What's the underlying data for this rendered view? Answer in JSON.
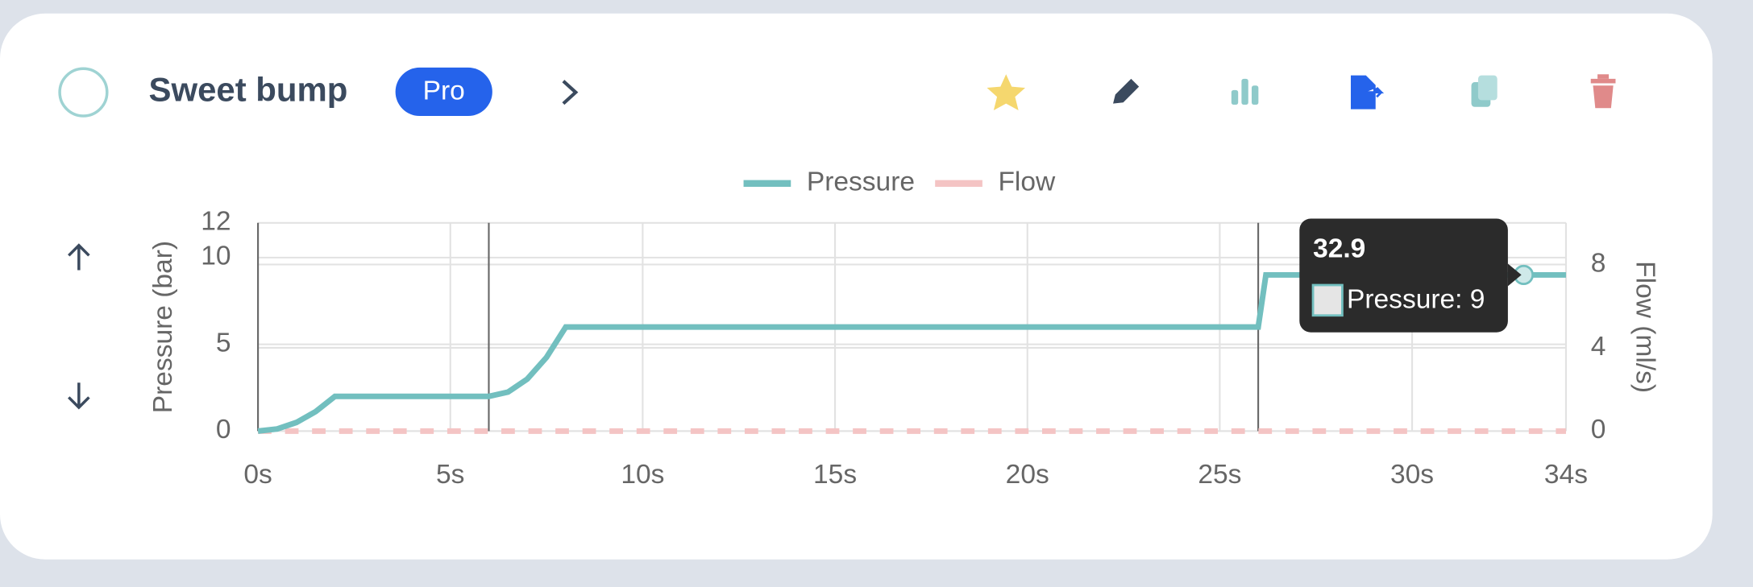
{
  "header": {
    "title": "Sweet bump",
    "badge": "Pro"
  },
  "chart_data": {
    "type": "line",
    "y_label": "Pressure (bar)",
    "y2_label": "Flow (ml/s)",
    "xlim": [
      0,
      34
    ],
    "xticks": [
      {
        "value": 0,
        "label": "0s"
      },
      {
        "value": 5,
        "label": "5s"
      },
      {
        "value": 10,
        "label": "10s"
      },
      {
        "value": 15,
        "label": "15s"
      },
      {
        "value": 20,
        "label": "20s"
      },
      {
        "value": 25,
        "label": "25s"
      },
      {
        "value": 30,
        "label": "30s"
      },
      {
        "value": 34,
        "label": "34s"
      }
    ],
    "ylim": [
      0,
      12
    ],
    "yticks": [
      0,
      5,
      10,
      12
    ],
    "y2lim": [
      0,
      10
    ],
    "y2ticks": [
      0,
      4,
      8
    ],
    "grid": true,
    "phase_lines": [
      0,
      6,
      26
    ],
    "series": [
      {
        "name": "Pressure",
        "color": "#72bfbf",
        "x": [
          0,
          0.5,
          1,
          1.5,
          2,
          6,
          6.5,
          7,
          7.5,
          8,
          26,
          26.2,
          34
        ],
        "values": [
          0,
          0.125,
          0.5,
          1.125,
          2,
          2,
          2.25,
          3,
          4.25,
          6,
          6,
          9,
          9
        ]
      },
      {
        "name": "Flow",
        "color": "#f4c4c4",
        "axis": "y2",
        "dashed": true,
        "x": [
          0,
          34
        ],
        "values": [
          0,
          0
        ]
      }
    ],
    "tooltip": {
      "title": "32.9",
      "label": "Pressure: 9",
      "x": 32.9,
      "value": 9
    }
  }
}
